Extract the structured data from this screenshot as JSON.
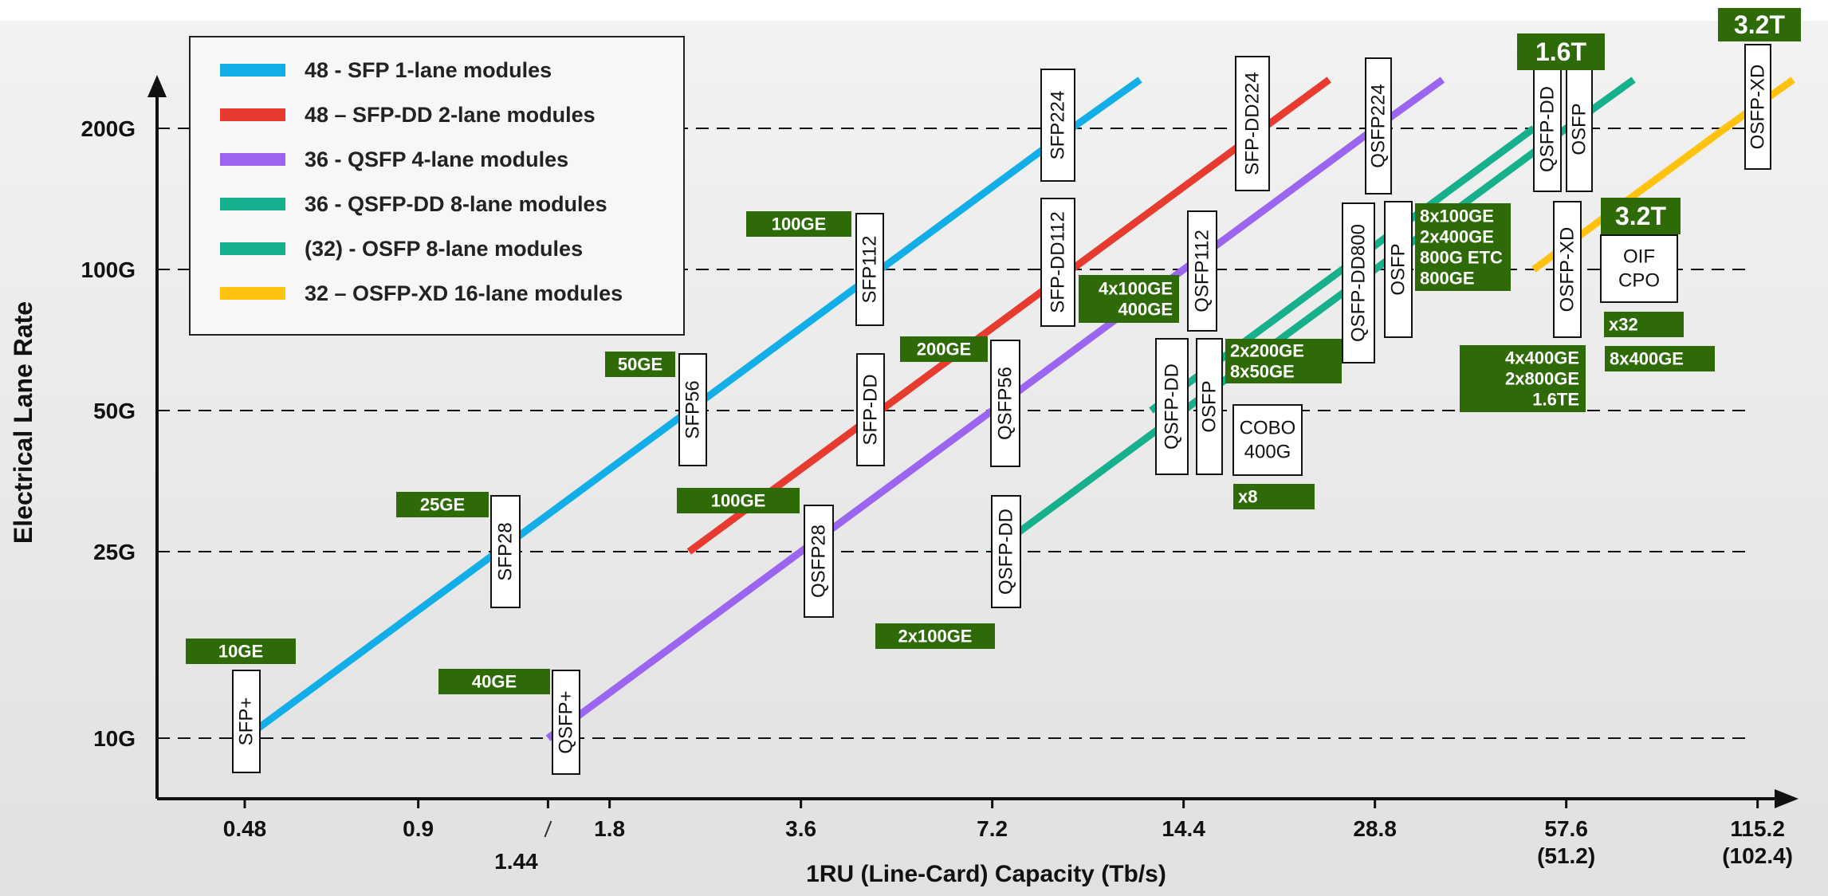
{
  "chart_data": {
    "type": "line",
    "xlabel": "1RU (Line-Card) Capacity (Tb/s)",
    "ylabel": "Electrical Lane Rate",
    "x_ticks": [
      {
        "value": 0.48,
        "label": "0.48"
      },
      {
        "value": 0.9,
        "label": "0.9"
      },
      {
        "value": 1.44,
        "label": "1.44"
      },
      {
        "value": 1.8,
        "label": "1.8"
      },
      {
        "value": 3.6,
        "label": "3.6"
      },
      {
        "value": 7.2,
        "label": "7.2"
      },
      {
        "value": 14.4,
        "label": "14.4"
      },
      {
        "value": 28.8,
        "label": "28.8"
      },
      {
        "value": 57.6,
        "label": "57.6",
        "sub": "(51.2)"
      },
      {
        "value": 115.2,
        "label": "115.2",
        "sub": "(102.4)"
      }
    ],
    "y_ticks": [
      {
        "value": 10,
        "label": "10G"
      },
      {
        "value": 25,
        "label": "25G"
      },
      {
        "value": 50,
        "label": "50G"
      },
      {
        "value": 100,
        "label": "100G"
      },
      {
        "value": 200,
        "label": "200G"
      }
    ],
    "grid": "dashed horizontal lines at 10G, 25G, 50G, 100G, 200G",
    "x_scale": "log",
    "y_scale": "log",
    "legend_position": "top-left",
    "series": [
      {
        "name": "48 - SFP 1-lane modules",
        "color": "#12aee8",
        "points": [
          [
            0.48,
            10
          ],
          [
            1.2,
            25
          ],
          [
            2.4,
            50
          ],
          [
            4.8,
            100
          ],
          [
            9.6,
            200
          ],
          [
            12.3,
            254
          ]
        ]
      },
      {
        "name": "48 – SFP-DD 2-lane modules",
        "color": "#e63b2e",
        "points": [
          [
            2.4,
            25
          ],
          [
            4.8,
            50
          ],
          [
            9.6,
            100
          ],
          [
            19.2,
            200
          ],
          [
            24.4,
            254
          ]
        ]
      },
      {
        "name": "36 - QSFP 4-lane modules",
        "color": "#9b65f0",
        "points": [
          [
            1.44,
            10
          ],
          [
            3.6,
            25
          ],
          [
            7.2,
            50
          ],
          [
            14.4,
            100
          ],
          [
            28.8,
            200
          ],
          [
            36.8,
            254
          ]
        ]
      },
      {
        "name": "36 - QSFP-DD 8-lane modules",
        "color": "#16b08c",
        "points": [
          [
            7.2,
            25
          ],
          [
            14.4,
            50
          ],
          [
            28.8,
            100
          ],
          [
            57.6,
            200
          ],
          [
            73.5,
            254
          ]
        ]
      },
      {
        "name": "(32) - OSFP 8-lane modules",
        "color": "#16b08c",
        "points": [
          [
            12.8,
            50
          ],
          [
            25.6,
            100
          ],
          [
            51.2,
            200
          ]
        ]
      },
      {
        "name": "32 – OSFP-XD 16-lane modules",
        "color": "#ffc20e",
        "points": [
          [
            51.2,
            100
          ],
          [
            102.4,
            200
          ],
          [
            131,
            254
          ]
        ]
      }
    ],
    "module_labels": [
      {
        "text": "SFP+",
        "x": 0.48,
        "y": 10
      },
      {
        "text": "SFP28",
        "x": 1.2,
        "y": 25
      },
      {
        "text": "SFP56",
        "x": 2.4,
        "y": 50
      },
      {
        "text": "SFP112",
        "x": 4.8,
        "y": 100
      },
      {
        "text": "SFP224",
        "x": 9.6,
        "y": 200
      },
      {
        "text": "SFP-DD",
        "x": 4.8,
        "y": 50
      },
      {
        "text": "SFP-DD112",
        "x": 9.6,
        "y": 100
      },
      {
        "text": "SFP-DD224",
        "x": 19.2,
        "y": 200
      },
      {
        "text": "QSFP+",
        "x": 1.44,
        "y": 10
      },
      {
        "text": "QSFP28",
        "x": 3.6,
        "y": 25
      },
      {
        "text": "QSFP56",
        "x": 7.2,
        "y": 50
      },
      {
        "text": "QSFP112",
        "x": 14.4,
        "y": 100
      },
      {
        "text": "QSFP224",
        "x": 28.8,
        "y": 200
      },
      {
        "text": "QSFP-DD",
        "x": 7.2,
        "y": 25
      },
      {
        "text": "QSFP-DD",
        "x": 14.4,
        "y": 50
      },
      {
        "text": "QSFP-DD800",
        "x": 28.8,
        "y": 100
      },
      {
        "text": "QSFP-DD",
        "x": 57.6,
        "y": 200
      },
      {
        "text": "OSFP",
        "x": 14.4,
        "y": 50
      },
      {
        "text": "OSFP",
        "x": 28.8,
        "y": 100
      },
      {
        "text": "OSFP",
        "x": 57.6,
        "y": 200
      },
      {
        "text": "OSFP-XD",
        "x": 57.6,
        "y": 100
      },
      {
        "text": "OSFP-XD",
        "x": 115.2,
        "y": 200
      }
    ],
    "annotations": [
      "10GE",
      "25GE",
      "50GE",
      "100GE",
      "40GE",
      "100GE",
      "200GE",
      "2x100GE",
      "4x100GE 400GE",
      "2x200GE 8x50GE",
      "8x100GE 2x400GE 800G ETC 800GE",
      "4x400GE 2x800GE 1.6TE",
      "x8",
      "x32",
      "8x400GE",
      "1.6T",
      "3.2T",
      "3.2T",
      "COBO 400G",
      "OIF CPO"
    ]
  },
  "legend": [
    {
      "label": "48 - SFP 1-lane modules",
      "color": "#12aee8"
    },
    {
      "label": "48 – SFP-DD 2-lane modules",
      "color": "#e63b2e"
    },
    {
      "label": "36 - QSFP 4-lane modules",
      "color": "#9b65f0"
    },
    {
      "label": "36 - QSFP-DD 8-lane modules",
      "color": "#16b08c"
    },
    {
      "label": "(32) - OSFP 8-lane modules",
      "color": "#16b08c"
    },
    {
      "label": "32 – OSFP-XD 16-lane modules",
      "color": "#ffc20e"
    }
  ],
  "module_boxes": [
    {
      "text": "SFP+"
    },
    {
      "text": "SFP28"
    },
    {
      "text": "SFP56"
    },
    {
      "text": "SFP112"
    },
    {
      "text": "SFP224"
    },
    {
      "text": "SFP-DD"
    },
    {
      "text": "SFP-DD112"
    },
    {
      "text": "SFP-DD224"
    },
    {
      "text": "QSFP+"
    },
    {
      "text": "QSFP28"
    },
    {
      "text": "QSFP56"
    },
    {
      "text": "QSFP112"
    },
    {
      "text": "QSFP224"
    },
    {
      "text": "QSFP-DD"
    },
    {
      "text": "QSFP-DD"
    },
    {
      "text": "QSFP-DD800"
    },
    {
      "text": "QSFP-DD"
    },
    {
      "text": "OSFP"
    },
    {
      "text": "OSFP"
    },
    {
      "text": "OSFP"
    },
    {
      "text": "OSFP-XD"
    },
    {
      "text": "OSFP-XD"
    }
  ],
  "green_tags": [
    {
      "lines": [
        "10GE"
      ]
    },
    {
      "lines": [
        "25GE"
      ]
    },
    {
      "lines": [
        "50GE"
      ]
    },
    {
      "lines": [
        "100GE"
      ]
    },
    {
      "lines": [
        "40GE"
      ]
    },
    {
      "lines": [
        "100GE"
      ]
    },
    {
      "lines": [
        "200GE"
      ]
    },
    {
      "lines": [
        "2x100GE"
      ]
    },
    {
      "lines": [
        "4x100GE",
        "400GE"
      ]
    },
    {
      "lines": [
        "2x200GE",
        "8x50GE"
      ]
    },
    {
      "lines": [
        "8x100GE",
        "2x400GE",
        "800G ETC",
        "800GE"
      ]
    },
    {
      "lines": [
        "4x400GE",
        "2x800GE",
        "1.6TE"
      ]
    },
    {
      "lines": [
        "x8"
      ]
    },
    {
      "lines": [
        "x32"
      ]
    },
    {
      "lines": [
        "8x400GE"
      ]
    },
    {
      "lines": [
        "1.6T"
      ]
    },
    {
      "lines": [
        "3.2T"
      ]
    },
    {
      "lines": [
        "3.2T"
      ]
    }
  ],
  "white_boxes": [
    {
      "lines": [
        "COBO",
        "400G"
      ]
    },
    {
      "lines": [
        "OIF",
        "CPO"
      ]
    }
  ],
  "colors": {
    "tag_green": "#2e6b08",
    "axis": "#111111",
    "grid": "#111111"
  }
}
